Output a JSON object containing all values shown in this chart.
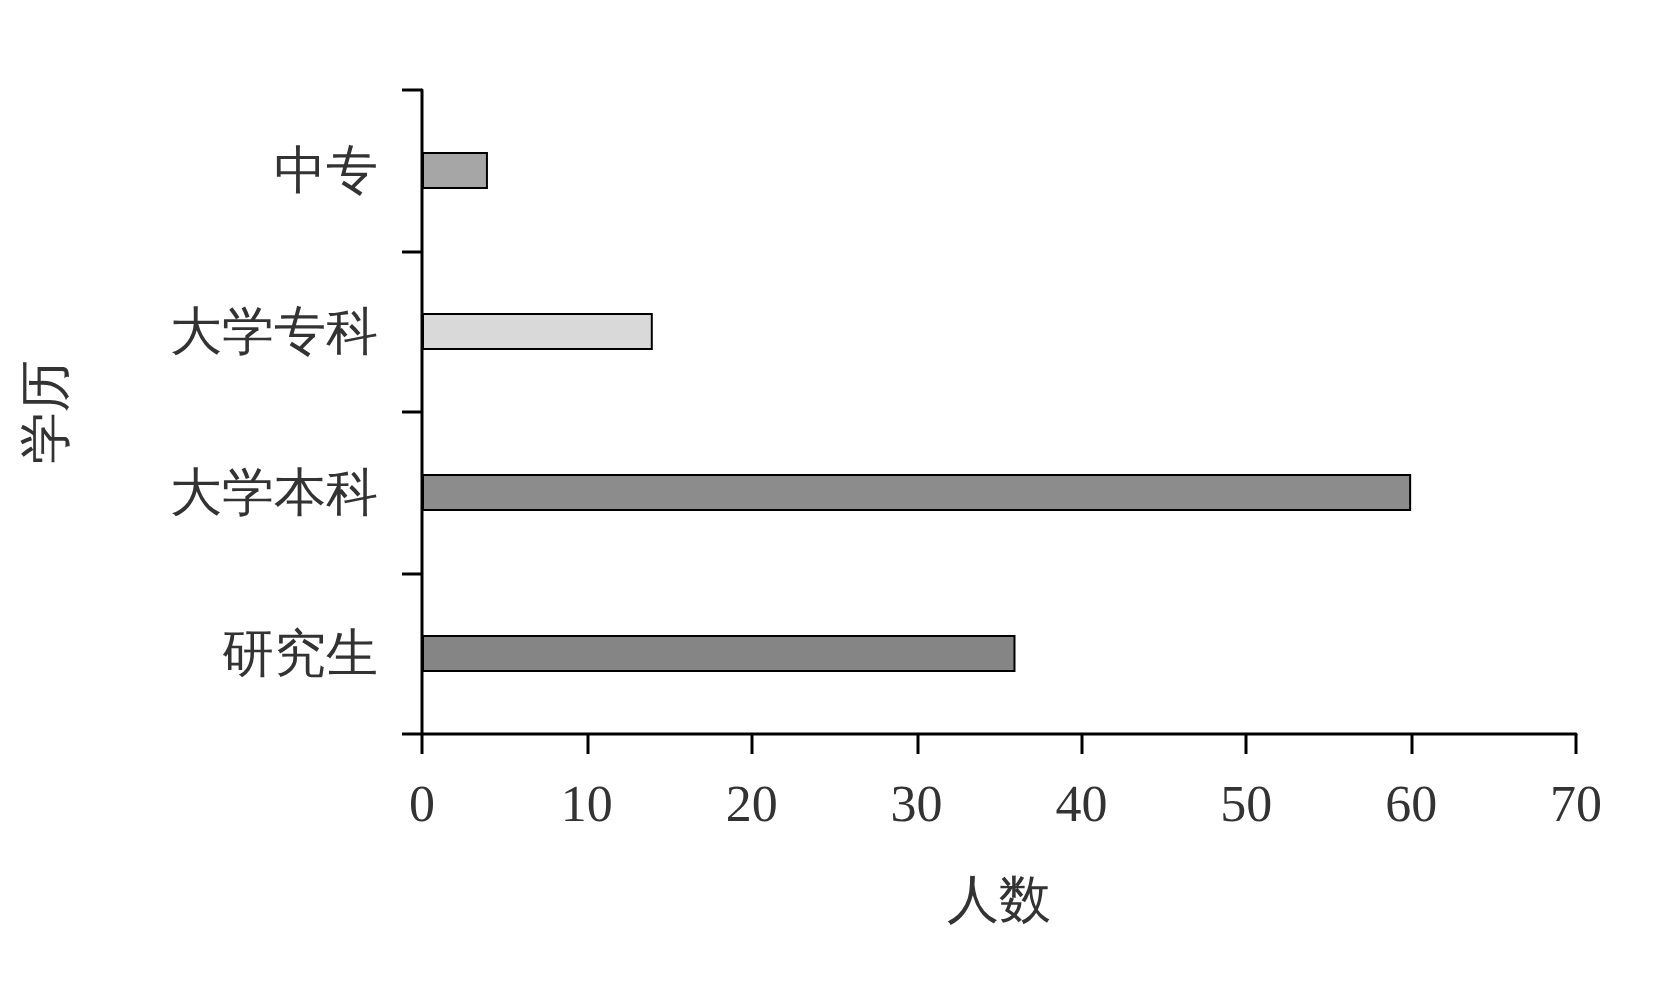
{
  "chart_data": {
    "type": "bar",
    "orientation": "horizontal",
    "xlabel": "人数",
    "ylabel": "学历",
    "categories": [
      "中专",
      "大学专科",
      "大学本科",
      "研究生"
    ],
    "values": [
      4,
      14,
      60,
      36
    ],
    "colors": [
      "#a6a6a6",
      "#d9d9d9",
      "#8c8c8c",
      "#858585"
    ],
    "xlim": [
      0,
      70
    ],
    "xticks": [
      0,
      10,
      20,
      30,
      40,
      50,
      60,
      70
    ]
  }
}
